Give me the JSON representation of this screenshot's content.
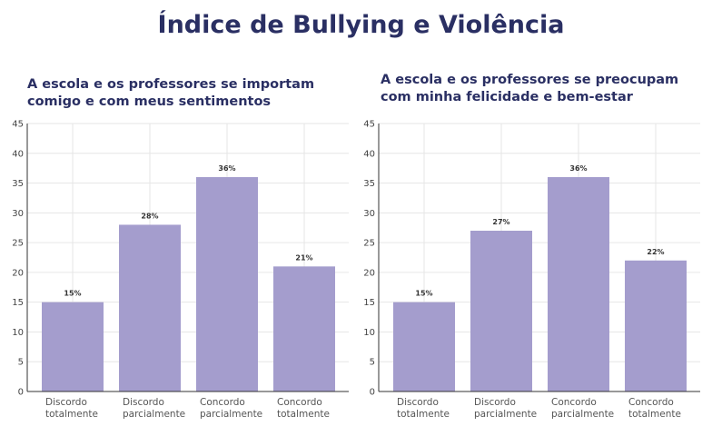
{
  "page": {
    "title": "Índice de Bullying e Violência"
  },
  "chart_data": [
    {
      "type": "bar",
      "title_lines": [
        "A escola e os professores se importam",
        "comigo e com meus sentimentos"
      ],
      "categories": [
        [
          "Discordo",
          "totalmente"
        ],
        [
          "Discordo",
          "parcialmente"
        ],
        [
          "Concordo",
          "parcialmente"
        ],
        [
          "Concordo",
          "totalmente"
        ]
      ],
      "values": [
        15,
        28,
        36,
        21
      ],
      "data_labels": [
        "15%",
        "28%",
        "36%",
        "21%"
      ],
      "ylim": [
        0,
        45
      ],
      "yticks": [
        0,
        5,
        10,
        15,
        20,
        25,
        30,
        35,
        40,
        45
      ],
      "grid": true,
      "bar_color": "#a49dcd"
    },
    {
      "type": "bar",
      "title_lines": [
        "A escola e os professores se preocupam",
        "com minha felicidade e bem-estar"
      ],
      "categories": [
        [
          "Discordo",
          "totalmente"
        ],
        [
          "Discordo",
          "parcialmente"
        ],
        [
          "Concordo",
          "parcialmente"
        ],
        [
          "Concordo",
          "totalmente"
        ]
      ],
      "values": [
        15,
        27,
        36,
        22
      ],
      "data_labels": [
        "15%",
        "27%",
        "36%",
        "22%"
      ],
      "ylim": [
        0,
        45
      ],
      "yticks": [
        0,
        5,
        10,
        15,
        20,
        25,
        30,
        35,
        40,
        45
      ],
      "grid": true,
      "bar_color": "#a49dcd"
    }
  ]
}
